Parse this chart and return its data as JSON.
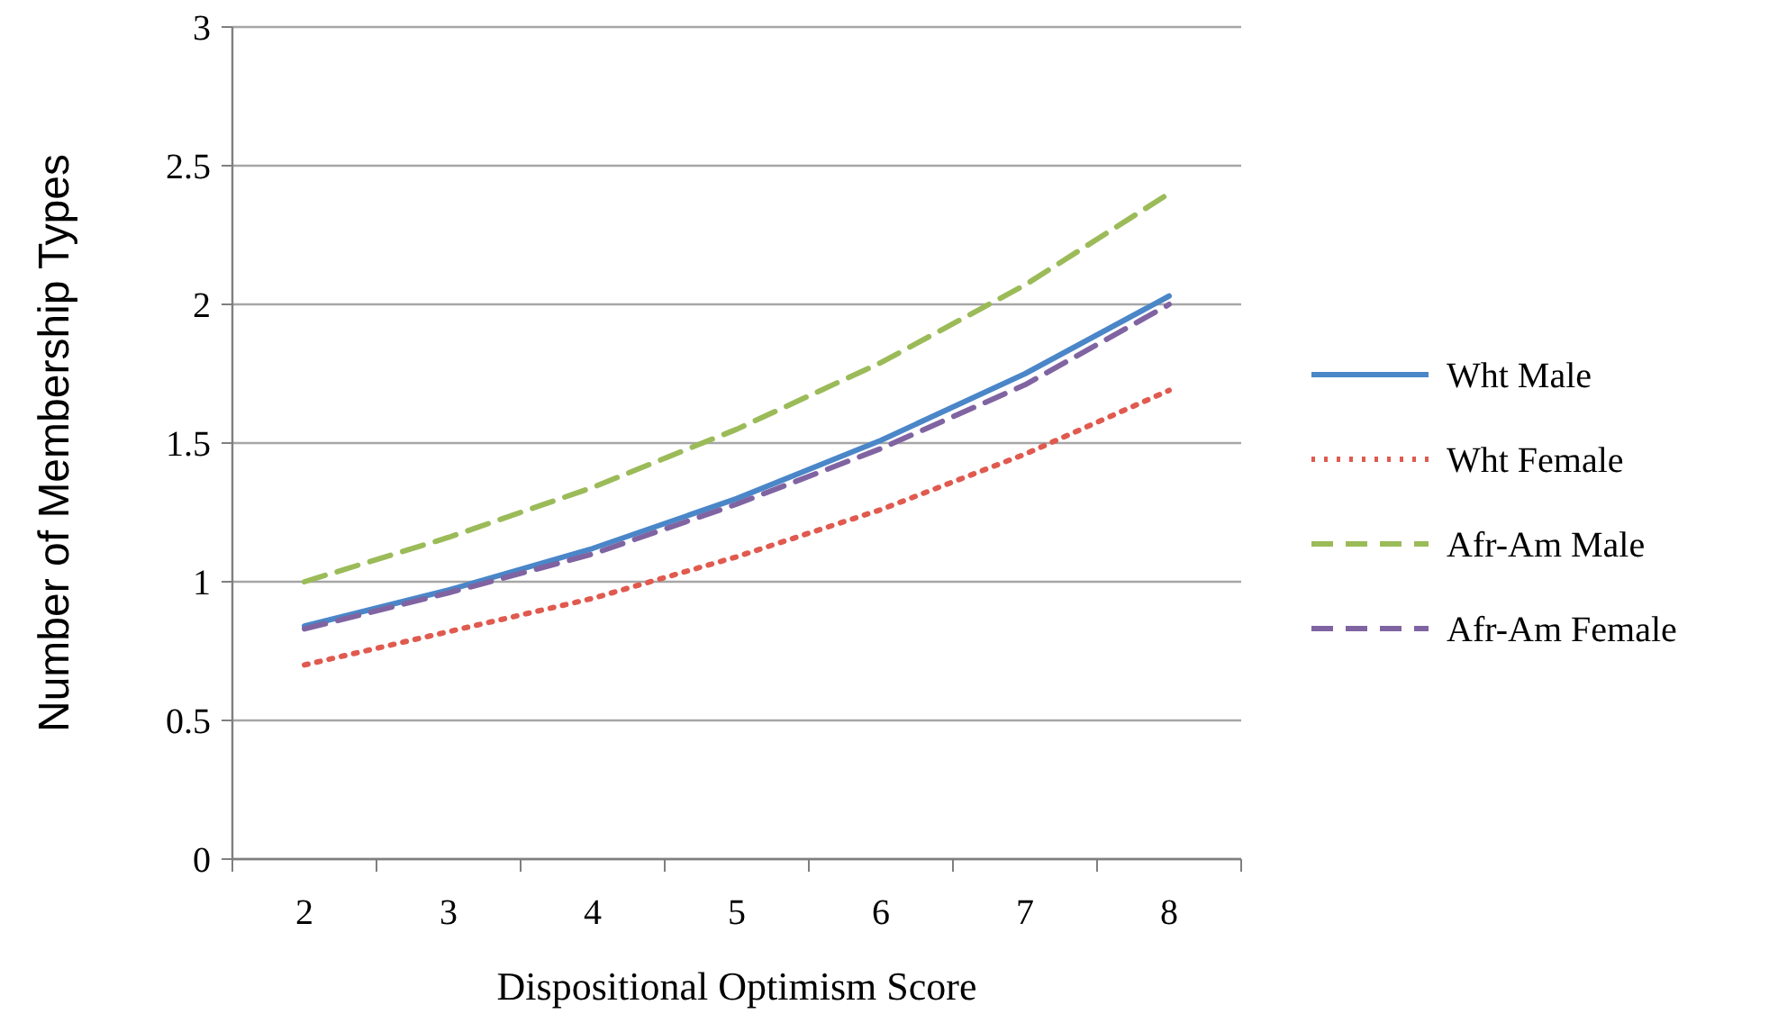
{
  "chart_data": {
    "type": "line",
    "xlabel": "Dispositional Optimism Score",
    "ylabel": "Number of Membership Types",
    "categories": [
      "2",
      "3",
      "4",
      "5",
      "6",
      "7",
      "8"
    ],
    "series": [
      {
        "name": "Wht Male",
        "color": "#4a86c8",
        "line_style": "solid",
        "values": [
          0.84,
          0.97,
          1.12,
          1.3,
          1.51,
          1.75,
          2.03
        ]
      },
      {
        "name": "Wht Female",
        "color": "#e05a4f",
        "line_style": "dotted",
        "values": [
          0.7,
          0.82,
          0.94,
          1.09,
          1.26,
          1.46,
          1.69
        ]
      },
      {
        "name": "Afr-Am Male",
        "color": "#9bbb59",
        "line_style": "dashed",
        "values": [
          1.0,
          1.16,
          1.34,
          1.55,
          1.79,
          2.07,
          2.4
        ]
      },
      {
        "name": "Afr-Am Female",
        "color": "#8064a2",
        "line_style": "dashed",
        "values": [
          0.83,
          0.96,
          1.1,
          1.28,
          1.48,
          1.71,
          2.0
        ]
      }
    ],
    "ylim": [
      0,
      3
    ],
    "yticks": [
      0,
      0.5,
      1,
      1.5,
      2,
      2.5,
      3
    ],
    "grid": "y",
    "legend": "right",
    "marker": "none"
  }
}
